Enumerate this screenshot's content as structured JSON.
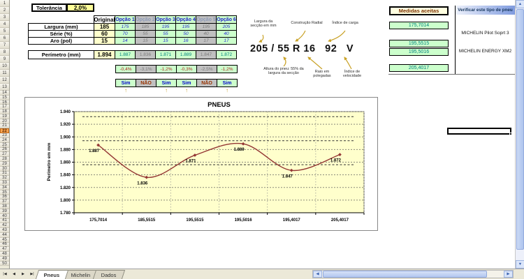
{
  "tolerance": {
    "label": "Tolerância",
    "value": "2,0%"
  },
  "table": {
    "row_labels": [
      "Largura (mm)",
      "Série (%)",
      "Aro (pol)"
    ],
    "perimeter_label": "Perímetro (mm)",
    "original": {
      "label": "Original",
      "largura": "185",
      "serie": "60",
      "aro": "15",
      "perimetro": "1.894"
    },
    "options": [
      {
        "label": "Opção 1",
        "enabled": true,
        "largura": "175",
        "serie": "70",
        "aro": "14",
        "perimetro": "1.887",
        "desvio": "-0,4%",
        "aceito": "Sim"
      },
      {
        "label": "Opção 2",
        "enabled": false,
        "largura": "185",
        "serie": "55",
        "aro": "15",
        "perimetro": "1.836",
        "desvio": "-3,1%",
        "aceito": "NÃO"
      },
      {
        "label": "Opção 3",
        "enabled": true,
        "largura": "195",
        "serie": "55",
        "aro": "15",
        "perimetro": "1.871",
        "desvio": "-1,2%",
        "aceito": "Sim"
      },
      {
        "label": "Opção 4",
        "enabled": true,
        "largura": "195",
        "serie": "50",
        "aro": "16",
        "perimetro": "1.889",
        "desvio": "-0,3%",
        "aceito": "Sim"
      },
      {
        "label": "Opção 5",
        "enabled": false,
        "largura": "195",
        "serie": "40",
        "aro": "17",
        "perimetro": "1.847",
        "desvio": "-2,5%",
        "aceito": "NÃO"
      },
      {
        "label": "Opção 6",
        "enabled": true,
        "largura": "205",
        "serie": "40",
        "aro": "17",
        "perimetro": "1.872",
        "desvio": "-1,2%",
        "aceito": "Sim"
      }
    ],
    "arrow_icon": "↑"
  },
  "tire_figure": {
    "code": "205 / 55 R 16   92   V",
    "labels": {
      "largura": "Largura da secção em mm",
      "construcao": "Construção Radial",
      "carga": "Índice de carga",
      "altura": "Altura do pneu: 55% da largura da secção",
      "raio": "Raio em polegadas",
      "velocidade": "Índice de velocidade"
    }
  },
  "accepted": {
    "title": "Medidas aceitas",
    "values": [
      "175,7014",
      "195,5515",
      "195,5016",
      "205,4017"
    ]
  },
  "verify": {
    "title": "Verificar este tipo de pneu",
    "items": [
      "MICHELIN Pilot Soprt 3",
      "MICHELIN ENERGY XM2"
    ]
  },
  "chart_data": {
    "type": "line",
    "title": "PNEUS",
    "ylabel": "Perímetro em mm",
    "categories": [
      "175,7014",
      "185,5515",
      "195,5515",
      "195,5016",
      "195,4017",
      "205,4017"
    ],
    "series": [
      {
        "name": "Perímetro",
        "values": [
          1887,
          1836,
          1871,
          1889,
          1847,
          1872
        ],
        "labels": [
          "1.887",
          "1.836",
          "1.871",
          "1.889",
          "1.847",
          "1.872"
        ]
      }
    ],
    "ref_lines": [
      {
        "name": "limite-superior",
        "value": 1932
      },
      {
        "name": "original",
        "value": 1894
      },
      {
        "name": "limite-inferior",
        "value": 1856
      }
    ],
    "ylim": [
      1780,
      1940
    ],
    "ytick_step": 20,
    "ytick_labels": [
      "1.780",
      "1.800",
      "1.820",
      "1.840",
      "1.860",
      "1.880",
      "1.900",
      "1.920",
      "1.940"
    ],
    "grid": "dashed",
    "legend": "none",
    "plot_bg": "#FFFFCC",
    "line_color": "#943634"
  },
  "sheet": {
    "row_count": 50,
    "selected_row": 22,
    "tabs": [
      "Pneus",
      "Michelin",
      "Dados"
    ],
    "active_tab": "Pneus"
  },
  "icons": {
    "nav_first": "|◀",
    "nav_prev": "◀",
    "nav_next": "▶",
    "nav_last": "▶|",
    "scroll_left": "◀",
    "scroll_right": "▶",
    "scroll_up": "▲",
    "scroll_down": "▼"
  },
  "colors": {
    "cell_green": "#CCFFCC",
    "cell_yellow": "#FFFFCC",
    "tolerance_yellow": "#FFFF99",
    "cell_disabled": "#C0C0C0",
    "option_text": "#2A2AD4",
    "measure_text": "#00807E",
    "deviation_text": "#B22222",
    "sim_text": "#0000CC",
    "nao_text": "#993300",
    "chart_bg": "#FFFFCC",
    "chart_line": "#943634",
    "arrow_gold": "#C9A227",
    "selected_row": "#F9A54F",
    "verify_header_from": "#EDF1FB",
    "verify_header_to": "#7F9BDF"
  }
}
